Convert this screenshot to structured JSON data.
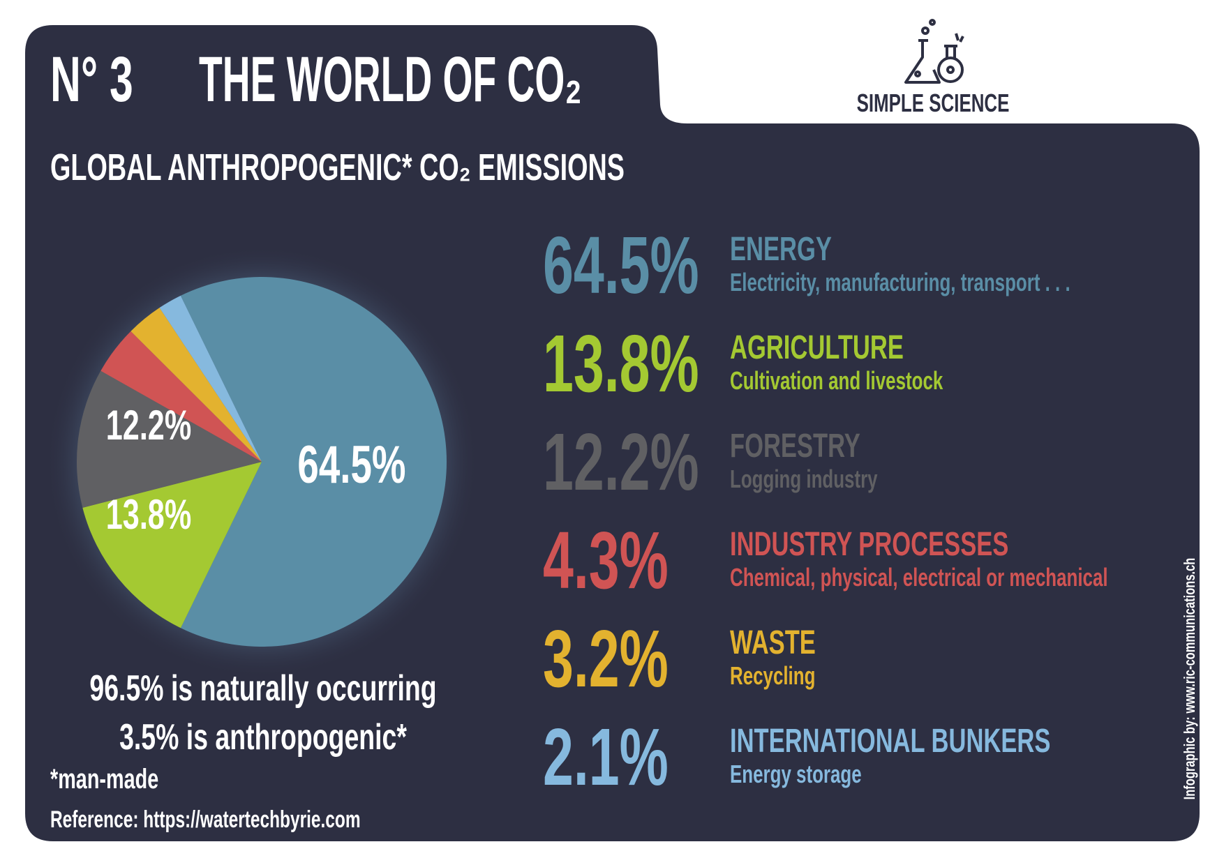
{
  "chart_data": {
    "type": "pie",
    "issue": "N° 3",
    "title": "THE WORLD OF CO₂",
    "brand": "SIMPLE SCIENCE",
    "subtitle": "GLOBAL ANTHROPOGENIC* CO₂ EMISSIONS",
    "categories": [
      "ENERGY",
      "AGRICULTURE",
      "FORESTRY",
      "INDUSTRY PROCESSES",
      "WASTE",
      "INTERNATIONAL BUNKERS"
    ],
    "descriptions": [
      "Electricity, manufacturing, transport . . .",
      "Cultivation and livestock",
      "Logging industry",
      "Chemical, physical, electrical or mechanical",
      "Recycling",
      "Energy storage"
    ],
    "values": [
      64.5,
      13.8,
      12.2,
      4.3,
      3.2,
      2.1
    ],
    "value_labels": [
      "64.5%",
      "13.8%",
      "12.2%",
      "4.3%",
      "3.2%",
      "2.1%"
    ],
    "colors": [
      "#5a8ea6",
      "#a4c932",
      "#606063",
      "#d05454",
      "#e3b22f",
      "#86b9de"
    ],
    "notes": [
      "96.5% is naturally occurring",
      "3.5%  is anthropogenic*",
      "*man-made"
    ],
    "reference": "Reference: https://watertechbyrie.com",
    "credit": "Infographic by: www.ric-communications.ch"
  }
}
